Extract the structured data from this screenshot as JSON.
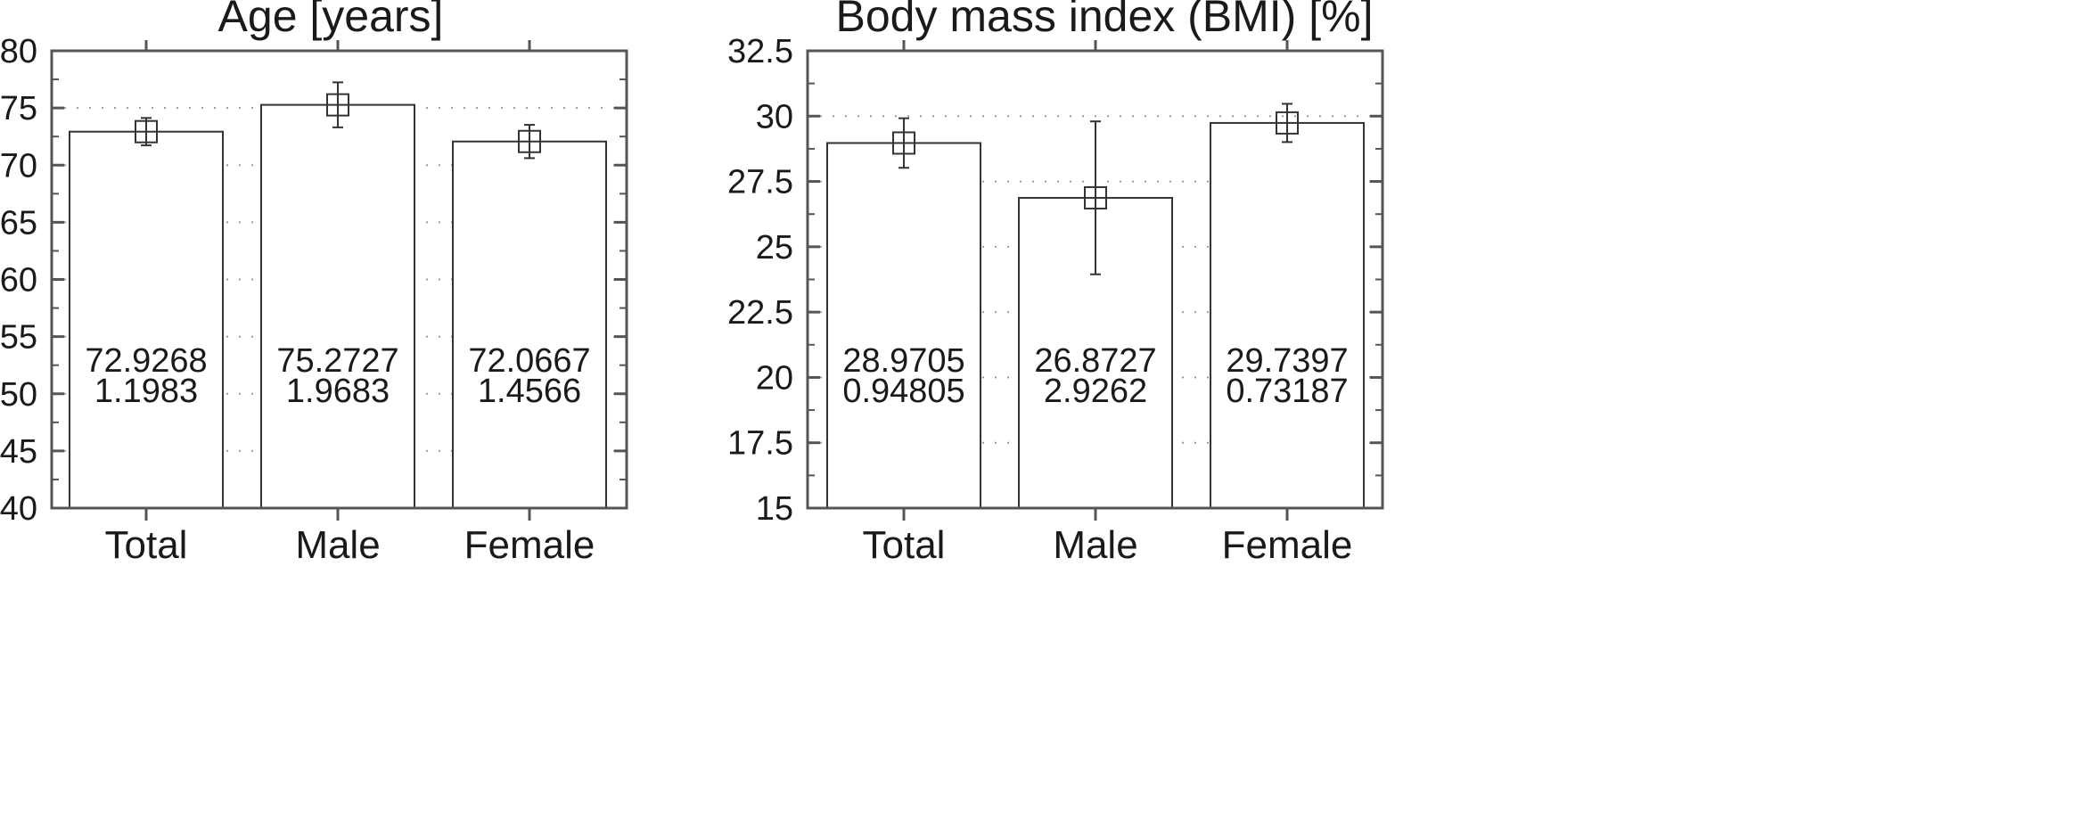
{
  "colors": {
    "axis": "#555555",
    "bar_fill": "#ffffff",
    "bar_stroke": "#333333",
    "grid": "#9a9a9a",
    "text": "#1a1a1a"
  },
  "chart_data": [
    {
      "type": "bar",
      "title": "Age [years]",
      "categories": [
        "Total",
        "Male",
        "Female"
      ],
      "values": [
        72.9268,
        75.2727,
        72.0667
      ],
      "errors": [
        1.1983,
        1.9683,
        1.4566
      ],
      "value_labels": [
        "72.9268",
        "75.2727",
        "72.0667"
      ],
      "error_labels": [
        "1.1983",
        "1.9683",
        "1.4566"
      ],
      "ylim": [
        40,
        80
      ],
      "yticks": [
        40,
        45,
        50,
        55,
        60,
        65,
        70,
        75,
        80
      ],
      "ytick_labels": [
        "40",
        "45",
        "50",
        "55",
        "60",
        "65",
        "70",
        "75",
        "80"
      ],
      "grid": true,
      "marker": "open-square with error bars"
    },
    {
      "type": "bar",
      "title": "Body mass index (BMI) [%]",
      "categories": [
        "Total",
        "Male",
        "Female"
      ],
      "values": [
        28.9705,
        26.8727,
        29.7397
      ],
      "errors": [
        0.94805,
        2.9262,
        0.73187
      ],
      "value_labels": [
        "28.9705",
        "26.8727",
        "29.7397"
      ],
      "error_labels": [
        "0.94805",
        "2.9262",
        "0.73187"
      ],
      "ylim": [
        15,
        32.5
      ],
      "yticks": [
        15,
        17.5,
        20,
        22.5,
        25,
        27.5,
        30,
        32.5
      ],
      "ytick_labels": [
        "15",
        "17.5",
        "20",
        "22.5",
        "25",
        "27.5",
        "30",
        "32.5"
      ],
      "grid": true,
      "marker": "open-square with error bars"
    }
  ]
}
